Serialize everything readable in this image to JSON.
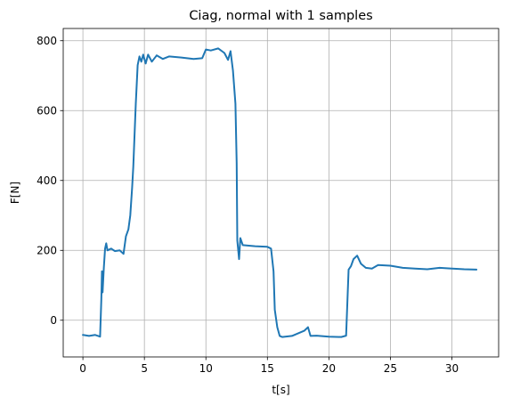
{
  "chart_data": {
    "type": "line",
    "title": "Ciag, normal with 1 samples",
    "xlabel": "t[s]",
    "ylabel": "F[N]",
    "xlim": [
      -1.6,
      33.8
    ],
    "ylim": [
      -105,
      835
    ],
    "xticks": [
      0,
      5,
      10,
      15,
      20,
      25,
      30
    ],
    "yticks": [
      0,
      200,
      400,
      600,
      800
    ],
    "grid": true,
    "line_color": "#1f77b4",
    "series": [
      {
        "x": [
          0.0,
          0.5,
          1.0,
          1.4,
          1.5,
          1.55,
          1.6,
          1.7,
          1.8,
          1.9,
          2.0,
          2.3,
          2.6,
          3.0,
          3.3,
          3.5,
          3.7,
          3.85,
          4.0,
          4.1,
          4.3,
          4.45,
          4.6,
          4.75,
          4.9,
          5.1,
          5.3,
          5.6,
          6.0,
          6.5,
          7.0,
          8.0,
          9.0,
          9.7,
          10.0,
          10.4,
          11.0,
          11.5,
          11.8,
          12.0,
          12.2,
          12.4,
          12.5,
          12.55,
          12.7,
          12.8,
          13.0,
          14.0,
          15.0,
          15.3,
          15.5,
          15.6,
          15.8,
          16.0,
          16.2,
          17.0,
          18.0,
          18.3,
          18.5,
          19.0,
          20.0,
          21.0,
          21.4,
          21.5,
          21.6,
          21.8,
          22.0,
          22.3,
          22.6,
          23.0,
          23.5,
          24.0,
          25.0,
          26.0,
          27.0,
          28.0,
          29.0,
          30.0,
          31.0,
          32.0
        ],
        "y": [
          -42,
          -45,
          -42,
          -47,
          60,
          140,
          80,
          150,
          205,
          220,
          200,
          205,
          198,
          200,
          190,
          240,
          260,
          300,
          380,
          440,
          620,
          730,
          755,
          740,
          760,
          735,
          760,
          740,
          758,
          748,
          755,
          752,
          748,
          750,
          775,
          772,
          778,
          765,
          745,
          770,
          715,
          620,
          450,
          228,
          175,
          235,
          215,
          212,
          210,
          205,
          140,
          30,
          -20,
          -45,
          -48,
          -45,
          -30,
          -20,
          -45,
          -44,
          -47,
          -48,
          -44,
          50,
          145,
          155,
          175,
          185,
          162,
          150,
          148,
          158,
          156,
          150,
          148,
          146,
          150,
          148,
          146,
          145
        ]
      }
    ]
  }
}
